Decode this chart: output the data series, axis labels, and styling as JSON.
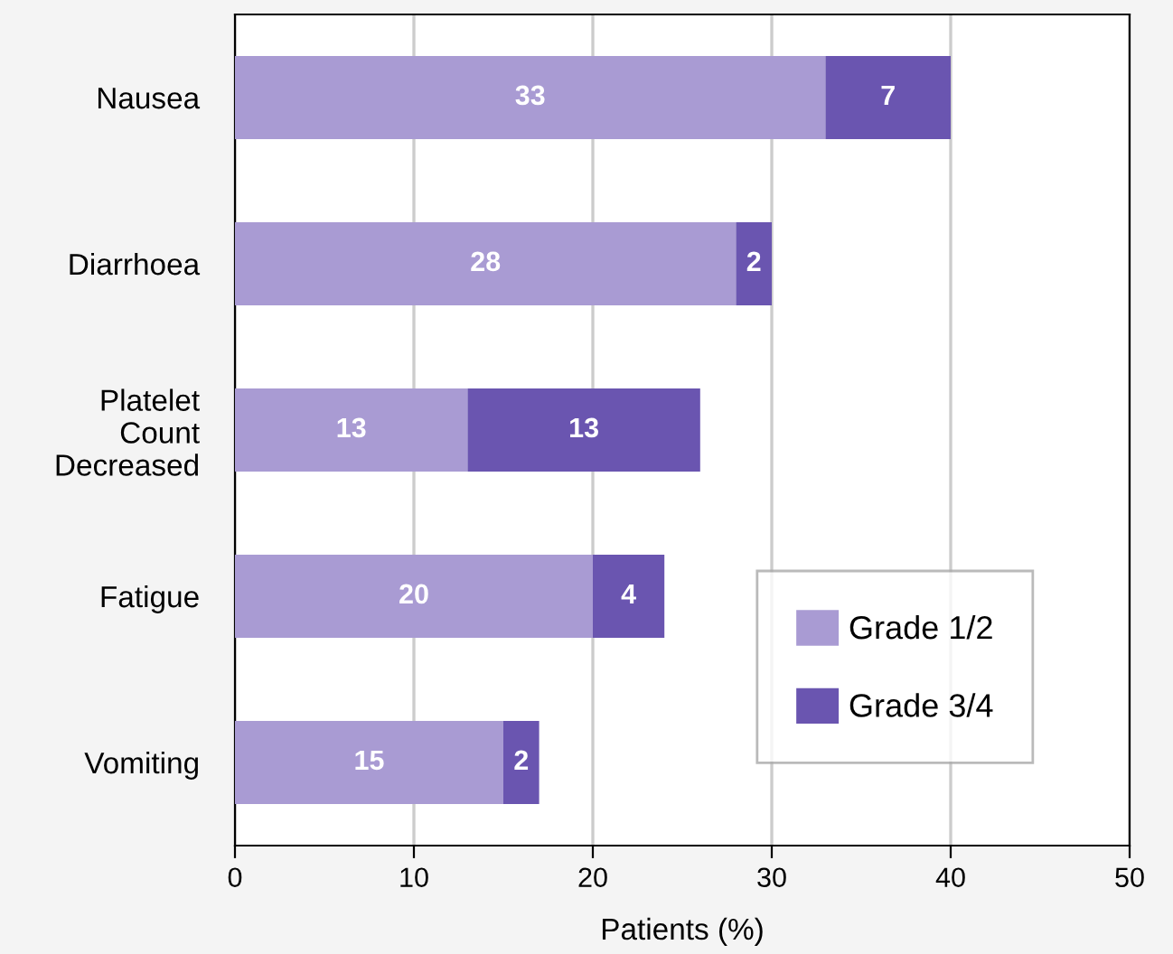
{
  "chart_data": {
    "type": "bar",
    "orientation": "horizontal",
    "stacked": true,
    "xlabel": "Patients (%)",
    "categories": [
      "Nausea",
      "Diarrhoea",
      "Platelet\nCount\nDecreased",
      "Fatigue",
      "Vomiting"
    ],
    "series": [
      {
        "name": "Grade 1/2",
        "color": "#a99bd3",
        "values": [
          33,
          28,
          13,
          20,
          15
        ]
      },
      {
        "name": "Grade 3/4",
        "color": "#6a55b0",
        "values": [
          7,
          2,
          13,
          4,
          2
        ]
      }
    ],
    "xlim": [
      0,
      50
    ],
    "xticks": [
      0,
      10,
      20,
      30,
      40,
      50
    ],
    "grid": "x",
    "legend": "bottom right",
    "data_labels": true
  }
}
